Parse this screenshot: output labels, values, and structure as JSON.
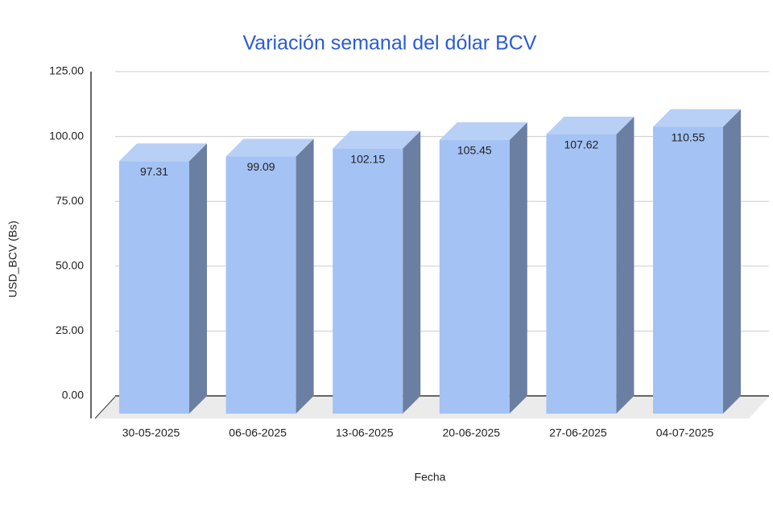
{
  "chart_data": {
    "type": "bar3d",
    "title": "Variación semanal del dólar BCV",
    "x_label": "Fecha",
    "y_label": "USD_BCV (Bs)",
    "categories": [
      "30-05-2025",
      "06-06-2025",
      "13-06-2025",
      "20-06-2025",
      "27-06-2025",
      "04-07-2025"
    ],
    "values": [
      97.31,
      99.09,
      102.15,
      105.45,
      107.62,
      110.55
    ],
    "color": "#a4c2f4",
    "ylim": [
      0,
      125
    ],
    "yticks": [
      {
        "value": 0,
        "label": "0.00"
      },
      {
        "value": 25,
        "label": "25.00"
      },
      {
        "value": 50,
        "label": "50.00"
      },
      {
        "value": 75,
        "label": "75.00"
      },
      {
        "value": 100,
        "label": "100.00"
      },
      {
        "value": 125,
        "label": "125.00"
      }
    ],
    "grid": true
  }
}
